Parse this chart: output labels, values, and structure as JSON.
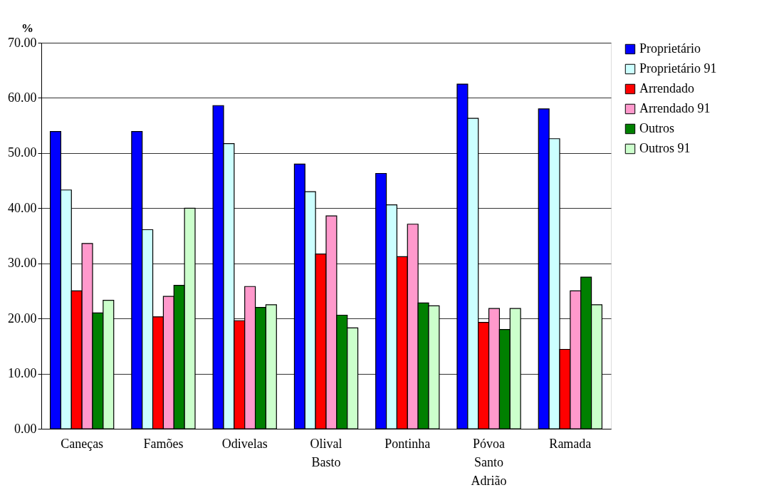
{
  "chart_data": {
    "type": "bar",
    "ylabel": "%",
    "categories": [
      "Caneças",
      "Famões",
      "Odivelas",
      "Olival Basto",
      "Pontinha",
      "Póvoa Santo Adrião",
      "Ramada"
    ],
    "series": [
      {
        "name": "Proprietário",
        "color": "#0000ff",
        "values": [
          53.9,
          53.9,
          58.6,
          48.0,
          46.3,
          62.5,
          58.0
        ]
      },
      {
        "name": "Proprietário 91",
        "color": "#ccffff",
        "values": [
          43.3,
          36.1,
          51.7,
          43.0,
          40.6,
          56.3,
          52.6
        ]
      },
      {
        "name": "Arrendado",
        "color": "#ff0000",
        "values": [
          25.0,
          20.3,
          19.6,
          31.7,
          31.2,
          19.3,
          14.4
        ]
      },
      {
        "name": "Arrendado 91",
        "color": "#ff99cc",
        "values": [
          33.6,
          24.0,
          25.8,
          38.6,
          37.1,
          21.8,
          25.0
        ]
      },
      {
        "name": "Outros",
        "color": "#008000",
        "values": [
          21.0,
          26.0,
          22.0,
          20.6,
          22.8,
          18.0,
          27.5
        ]
      },
      {
        "name": "Outros 91",
        "color": "#ccffcc",
        "values": [
          23.3,
          40.0,
          22.5,
          18.3,
          22.3,
          21.8,
          22.5
        ]
      }
    ],
    "ylim": [
      0,
      70
    ],
    "yticks": [
      {
        "value": 0,
        "label": "0.00"
      },
      {
        "value": 10,
        "label": "10.00"
      },
      {
        "value": 20,
        "label": "20.00"
      },
      {
        "value": 30,
        "label": "30.00"
      },
      {
        "value": 40,
        "label": "40.00"
      },
      {
        "value": 50,
        "label": "50.00"
      },
      {
        "value": 60,
        "label": "60.00"
      },
      {
        "value": 70,
        "label": "70.00"
      }
    ],
    "grid": true,
    "legend": "right"
  }
}
